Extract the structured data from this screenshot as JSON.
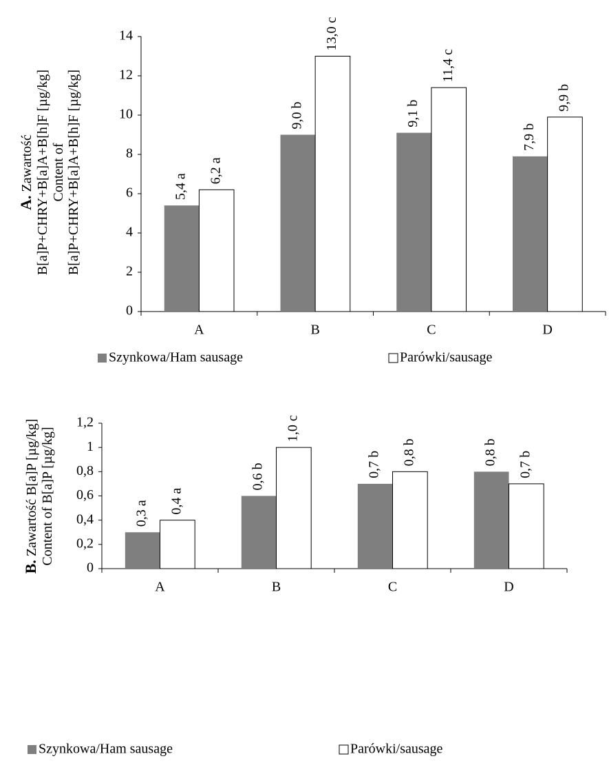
{
  "chart_data": [
    {
      "type": "bar",
      "panel_label": "A.",
      "ylabel": [
        "Zawartość",
        "B[a]P+CHRY+B[a]A+B[h]F [µg/kg]",
        "Content of",
        "B[a]P+CHRY+B[a]A+B[h]F [µg/kg]"
      ],
      "categories": [
        "A",
        "B",
        "C",
        "D"
      ],
      "series": [
        {
          "name": "Szynkowa/Ham sausage",
          "color": "#7f7f7f",
          "values": [
            5.4,
            9.0,
            9.1,
            7.9
          ],
          "value_labels": [
            "5,4 a",
            "9,0 b",
            "9,1 b",
            "7,9 b"
          ]
        },
        {
          "name": "Parówki/sausage",
          "color": "#ffffff",
          "values": [
            6.2,
            13.0,
            11.4,
            9.9
          ],
          "value_labels": [
            "6,2 a",
            "13,0 c",
            "11,4 c",
            "9,9 b"
          ]
        }
      ],
      "ylim": [
        0,
        14
      ],
      "yticks": [
        0,
        2,
        4,
        6,
        8,
        10,
        12,
        14
      ],
      "legend": "bottom"
    },
    {
      "type": "bar",
      "panel_label": "B.",
      "ylabel": [
        "Zawartość B[a]P [µg/kg]",
        "Content of B[a]P [µg/kg]"
      ],
      "categories": [
        "A",
        "B",
        "C",
        "D"
      ],
      "series": [
        {
          "name": "Szynkowa/Ham sausage",
          "color": "#7f7f7f",
          "values": [
            0.3,
            0.6,
            0.7,
            0.8
          ],
          "value_labels": [
            "0,3 a",
            "0,6 b",
            "0,7 b",
            "0,8 b"
          ]
        },
        {
          "name": "Parówki/sausage",
          "color": "#ffffff",
          "values": [
            0.4,
            1.0,
            0.8,
            0.7
          ],
          "value_labels": [
            "0,4 a",
            "1,0 c",
            "0,8 b",
            "0,7 b"
          ]
        }
      ],
      "ylim": [
        0,
        1.2
      ],
      "yticks": [
        0,
        {
          "value": 0.2,
          "label": "0,2"
        },
        {
          "value": 0.4,
          "label": "0,4"
        },
        {
          "value": 0.6,
          "label": "0,6"
        },
        {
          "value": 0.8,
          "label": "0,8"
        },
        1,
        {
          "value": 1.2,
          "label": "1,2"
        }
      ],
      "legend": "bottom"
    }
  ]
}
